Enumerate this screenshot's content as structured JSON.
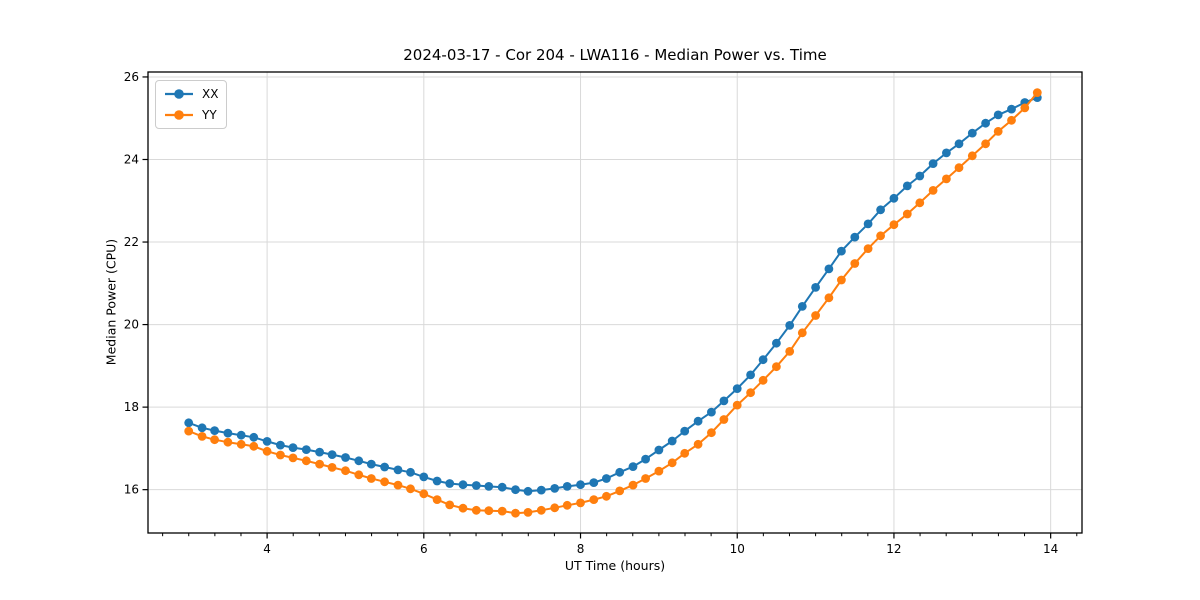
{
  "figure": {
    "title": "2024-03-17 - Cor 204 - LWA116 - Median Power vs. Time",
    "xlabel": "UT Time (hours)",
    "ylabel": "Median Power (CPU)"
  },
  "legend": {
    "items": [
      {
        "label": "XX",
        "color": "#1f77b4"
      },
      {
        "label": "YY",
        "color": "#ff7f0e"
      }
    ]
  },
  "colors": {
    "series_xx": "#1f77b4",
    "series_yy": "#ff7f0e",
    "grid": "#d9d9d9",
    "axis": "#000000",
    "background": "#ffffff"
  },
  "chart_data": {
    "type": "line",
    "title": "2024-03-17 - Cor 204 - LWA116 - Median Power vs. Time",
    "xlabel": "UT Time (hours)",
    "ylabel": "Median Power (CPU)",
    "xlim": [
      2.48,
      14.4
    ],
    "ylim": [
      14.95,
      26.12
    ],
    "x_ticks": [
      4,
      6,
      8,
      10,
      12,
      14
    ],
    "y_ticks": [
      16,
      18,
      20,
      22,
      24,
      26
    ],
    "x_minor_tick_step": 0.3333,
    "grid": true,
    "legend_position": "upper left",
    "marker": "circle",
    "x": [
      3.0,
      3.17,
      3.33,
      3.5,
      3.67,
      3.83,
      4.0,
      4.17,
      4.33,
      4.5,
      4.67,
      4.83,
      5.0,
      5.17,
      5.33,
      5.5,
      5.67,
      5.83,
      6.0,
      6.17,
      6.33,
      6.5,
      6.67,
      6.83,
      7.0,
      7.17,
      7.33,
      7.5,
      7.67,
      7.83,
      8.0,
      8.17,
      8.33,
      8.5,
      8.67,
      8.83,
      9.0,
      9.17,
      9.33,
      9.5,
      9.67,
      9.83,
      10.0,
      10.17,
      10.33,
      10.5,
      10.67,
      10.83,
      11.0,
      11.17,
      11.33,
      11.5,
      11.67,
      11.83,
      12.0,
      12.17,
      12.33,
      12.5,
      12.67,
      12.83,
      13.0,
      13.17,
      13.33,
      13.5,
      13.67,
      13.83
    ],
    "series": [
      {
        "name": "XX",
        "color": "#1f77b4",
        "values": [
          17.62,
          17.5,
          17.43,
          17.37,
          17.32,
          17.27,
          17.17,
          17.08,
          17.02,
          16.97,
          16.91,
          16.85,
          16.78,
          16.7,
          16.62,
          16.55,
          16.48,
          16.42,
          16.31,
          16.21,
          16.15,
          16.12,
          16.1,
          16.08,
          16.06,
          16.0,
          15.96,
          15.99,
          16.03,
          16.08,
          16.12,
          16.17,
          16.27,
          16.42,
          16.56,
          16.74,
          16.96,
          17.18,
          17.42,
          17.66,
          17.88,
          18.15,
          18.45,
          18.78,
          19.15,
          19.55,
          19.98,
          20.44,
          20.9,
          21.35,
          21.78,
          22.12,
          22.44,
          22.78,
          23.06,
          23.36,
          23.6,
          23.9,
          24.16,
          24.38,
          24.64,
          24.88,
          25.08,
          25.22,
          25.38,
          25.5
        ]
      },
      {
        "name": "YY",
        "color": "#ff7f0e",
        "values": [
          17.42,
          17.29,
          17.21,
          17.15,
          17.1,
          17.05,
          16.93,
          16.84,
          16.77,
          16.7,
          16.62,
          16.54,
          16.46,
          16.36,
          16.27,
          16.19,
          16.11,
          16.02,
          15.9,
          15.76,
          15.63,
          15.55,
          15.5,
          15.49,
          15.48,
          15.43,
          15.45,
          15.5,
          15.56,
          15.62,
          15.68,
          15.76,
          15.84,
          15.97,
          16.11,
          16.27,
          16.45,
          16.65,
          16.88,
          17.1,
          17.38,
          17.7,
          18.05,
          18.35,
          18.65,
          18.98,
          19.35,
          19.8,
          20.22,
          20.65,
          21.08,
          21.48,
          21.84,
          22.15,
          22.42,
          22.68,
          22.95,
          23.25,
          23.53,
          23.8,
          24.09,
          24.38,
          24.68,
          24.95,
          25.25,
          25.62
        ]
      }
    ]
  }
}
